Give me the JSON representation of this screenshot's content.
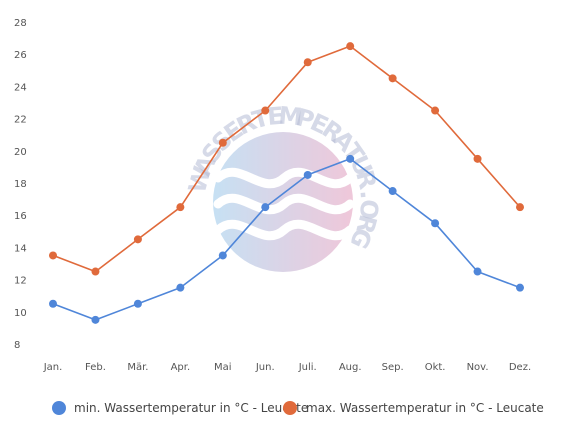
{
  "chart_data": {
    "type": "line",
    "categories": [
      "Jan.",
      "Feb.",
      "Mär.",
      "Apr.",
      "Mai",
      "Jun.",
      "Juli.",
      "Aug.",
      "Sep.",
      "Okt.",
      "Nov.",
      "Dez."
    ],
    "series": [
      {
        "name": "min. Wassertemperatur in °C - Leucate",
        "color": "#4f86d9",
        "values": [
          10.5,
          9.5,
          10.5,
          11.5,
          13.5,
          16.5,
          18.5,
          19.5,
          17.5,
          15.5,
          12.5,
          11.5
        ]
      },
      {
        "name": "max. Wassertemperatur in °C - Leucate",
        "color": "#e06a3b",
        "values": [
          13.5,
          12.5,
          14.5,
          16.5,
          20.5,
          22.5,
          25.5,
          26.5,
          24.5,
          22.5,
          19.5,
          16.5
        ]
      }
    ],
    "yticks": [
      "8",
      "10",
      "12",
      "14",
      "16",
      "18",
      "20",
      "22",
      "24",
      "26",
      "28"
    ],
    "ylim": [
      8,
      28
    ],
    "grid": false,
    "legend_position": "bottom"
  },
  "watermark": {
    "text": "WASSERTEMPERATUR.ORG"
  }
}
